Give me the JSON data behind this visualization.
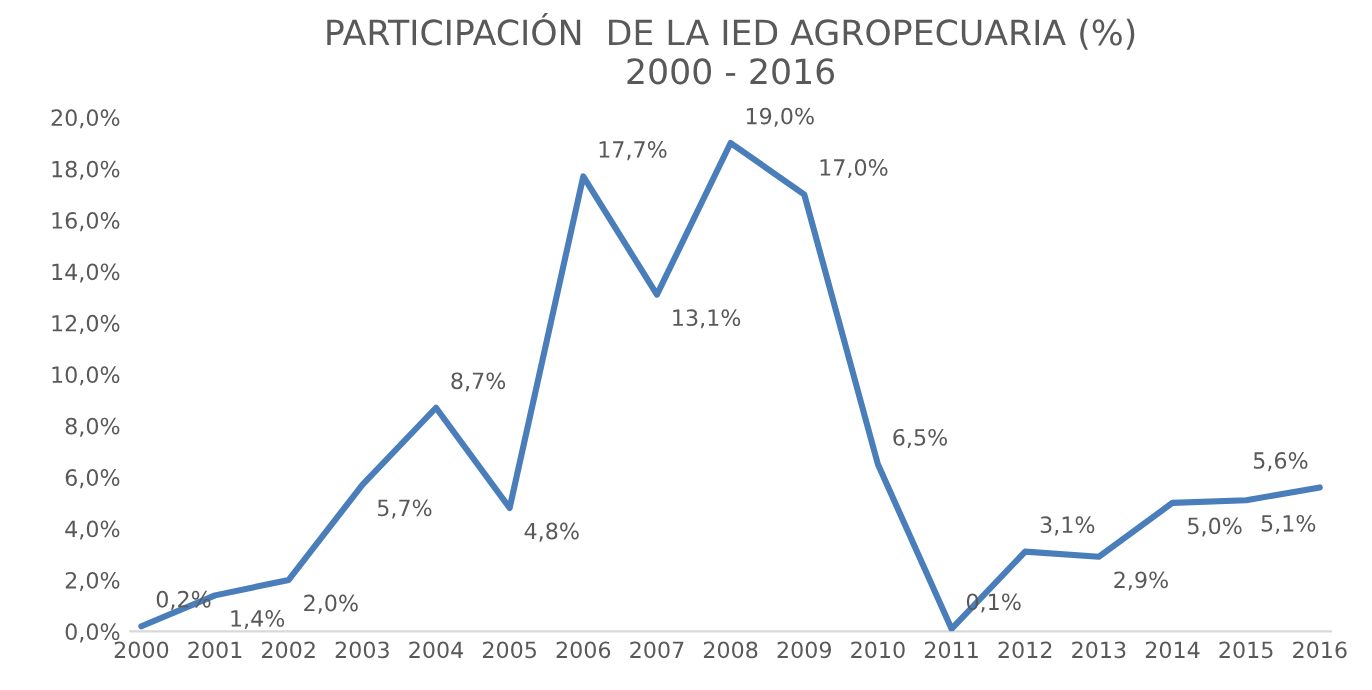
{
  "chart_data": {
    "type": "line",
    "title": "PARTICIPACIÓN  DE LA IED AGROPECUARIA (%)\n2000 - 2016",
    "categories": [
      "2000",
      "2001",
      "2002",
      "2003",
      "2004",
      "2005",
      "2006",
      "2007",
      "2008",
      "2009",
      "2010",
      "2011",
      "2012",
      "2013",
      "2014",
      "2015",
      "2016"
    ],
    "series": [
      {
        "color": "#4a7ebb",
        "values": [
          0.2,
          1.4,
          2.0,
          5.7,
          8.7,
          4.8,
          17.7,
          13.1,
          19.0,
          17.0,
          6.5,
          0.1,
          3.1,
          2.9,
          5.0,
          5.1,
          5.6
        ],
        "value_labels": [
          "0,2%",
          "1,4%",
          "2,0%",
          "5,7%",
          "8,7%",
          "4,8%",
          "17,7%",
          "13,1%",
          "19,0%",
          "17,0%",
          "6,5%",
          "0,1%",
          "3,1%",
          "2,9%",
          "5,0%",
          "5,1%",
          "5,6%"
        ]
      }
    ],
    "ylim": [
      0,
      20
    ],
    "yticks": [
      {
        "value": 0,
        "label": "0,0%"
      },
      {
        "value": 2,
        "label": "2,0%"
      },
      {
        "value": 4,
        "label": "4,0%"
      },
      {
        "value": 6,
        "label": "6,0%"
      },
      {
        "value": 8,
        "label": "8,0%"
      },
      {
        "value": 10,
        "label": "10,0%"
      },
      {
        "value": 12,
        "label": "12,0%"
      },
      {
        "value": 14,
        "label": "14,0%"
      },
      {
        "value": 16,
        "label": "16,0%"
      },
      {
        "value": 18,
        "label": "18,0%"
      },
      {
        "value": 20,
        "label": "20,0%"
      }
    ],
    "grid": false,
    "marker": "none",
    "line_style": "solid"
  }
}
